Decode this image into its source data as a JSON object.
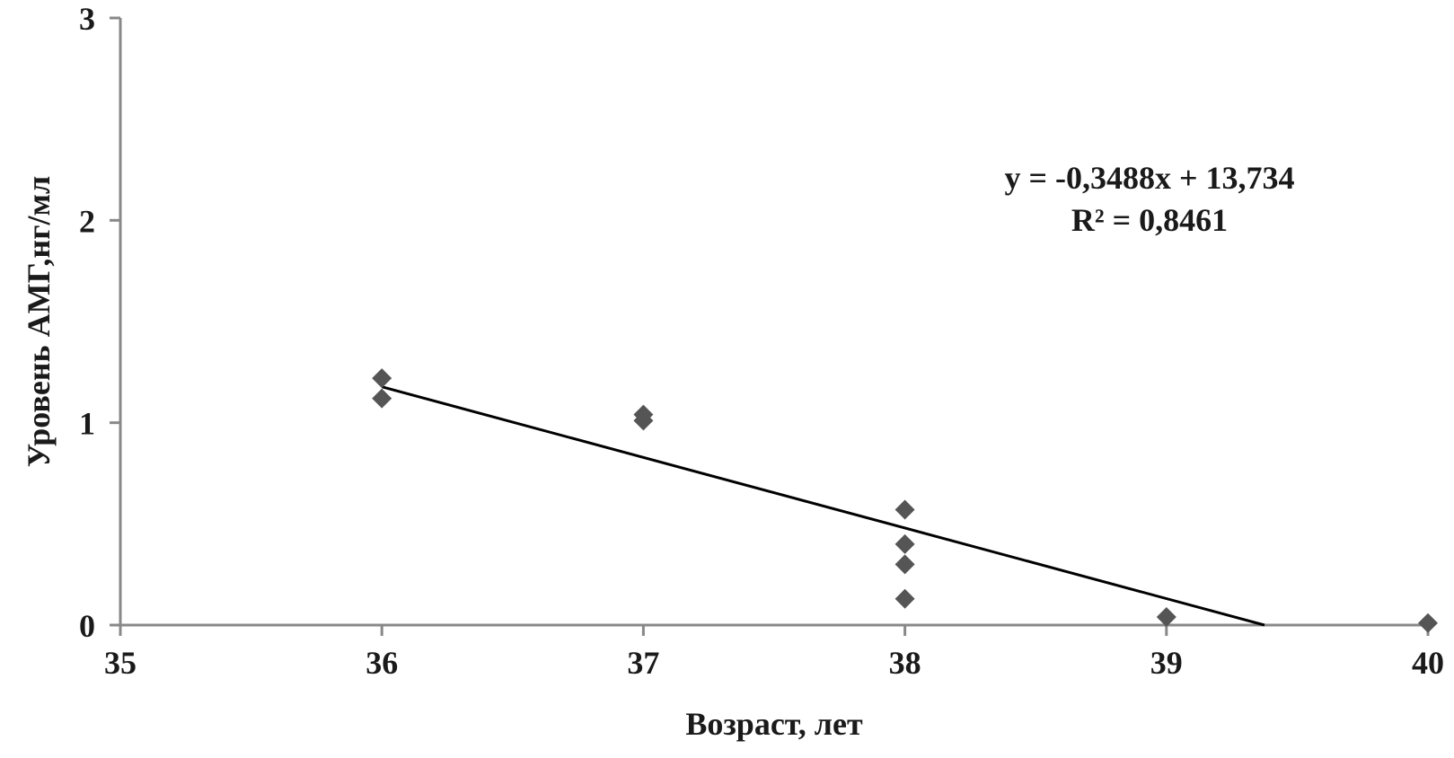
{
  "chart_data": {
    "type": "scatter",
    "title": "",
    "xlabel": "Возраст, лет",
    "ylabel": "Уровень АМГ,нг/мл",
    "xlim": [
      35,
      40
    ],
    "ylim": [
      0,
      3
    ],
    "x_ticks": [
      "35",
      "36",
      "37",
      "38",
      "39",
      "40"
    ],
    "y_ticks": [
      "0",
      "1",
      "2",
      "3"
    ],
    "grid": false,
    "legend": "none",
    "marker": "diamond",
    "colors": {
      "marker": "#555555",
      "axis": "#888888",
      "trendline": "#000000",
      "text": "#1a1a1a"
    },
    "series": [
      {
        "x": [
          36,
          36,
          37,
          37,
          38,
          38,
          38,
          38,
          39,
          40
        ],
        "y": [
          1.22,
          1.12,
          1.04,
          1.01,
          0.57,
          0.4,
          0.3,
          0.13,
          0.04,
          0.01
        ]
      }
    ],
    "trendline": {
      "slope": -0.3488,
      "intercept": 13.734,
      "x_start": 36,
      "equation_label": "y = -0,3488x + 13,734",
      "r2_label": "R² = 0,8461"
    }
  }
}
